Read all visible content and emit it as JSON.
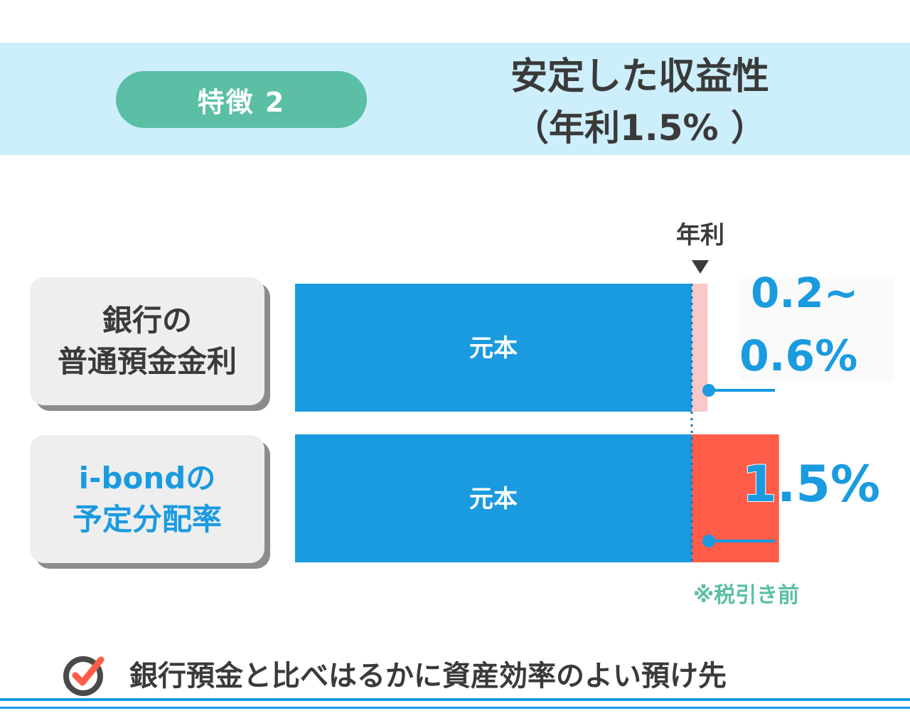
{
  "header": {
    "badge": "特徴 2",
    "title": "安定した収益性",
    "subtitle": "（年利1.5% ）"
  },
  "colors": {
    "banner_bg": "#cdeefb",
    "badge_bg": "#5bbfa5",
    "principal": "#1a9be0",
    "bank_interest": "#f9c8c8",
    "ibond_interest": "#ff5c4a",
    "accent_text": "#1a9be0",
    "note": "#5bbfa5"
  },
  "chart_data": {
    "type": "bar",
    "orientation": "horizontal",
    "stacked": true,
    "marker_label": "年利",
    "categories": [
      {
        "label_lines": [
          "銀行の",
          "普通預金金利"
        ],
        "label_color": "#3a3a3a"
      },
      {
        "label_lines": [
          "i-bondの",
          "予定分配率"
        ],
        "label_color": "#1a9be0"
      }
    ],
    "series": [
      {
        "name": "元本",
        "values": [
          1,
          1
        ]
      },
      {
        "values": [
          0.04,
          0.22
        ]
      }
    ],
    "rate_labels": [
      {
        "lines": [
          "0.2~",
          "0.6%"
        ]
      },
      {
        "lines": [
          "1.5%"
        ]
      }
    ],
    "note": "※税引き前"
  },
  "footer": {
    "text": "銀行預金と比べはるかに資産効率のよい預け先",
    "icon": "check-circle-icon"
  }
}
